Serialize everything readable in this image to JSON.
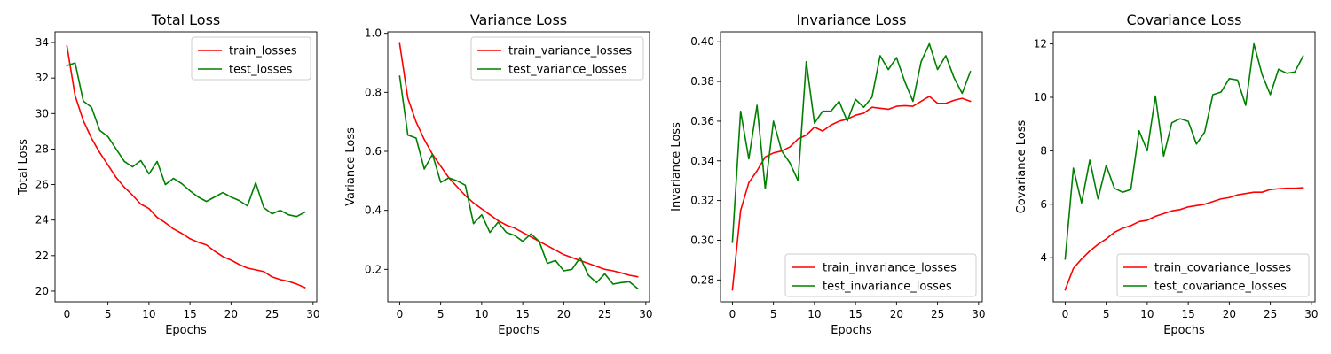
{
  "colors": {
    "train": "#ff0000",
    "test": "#008000",
    "axis": "#000000",
    "legend_border": "#cccccc"
  },
  "chart_data": [
    {
      "type": "line",
      "title": "Total Loss",
      "xlabel": "Epochs",
      "ylabel": "Total Loss",
      "xlim": [
        -1.45,
        30.45
      ],
      "ylim": [
        19.4,
        34.6
      ],
      "xticks": [
        0,
        5,
        10,
        15,
        20,
        25,
        30
      ],
      "yticks": [
        20,
        22,
        24,
        26,
        28,
        30,
        32,
        34
      ],
      "tick_decimals": 0,
      "legend_position": "top-right",
      "grid": false,
      "x": [
        0,
        1,
        2,
        3,
        4,
        5,
        6,
        7,
        8,
        9,
        10,
        11,
        12,
        13,
        14,
        15,
        16,
        17,
        18,
        19,
        20,
        21,
        22,
        23,
        24,
        25,
        26,
        27,
        28,
        29
      ],
      "series": [
        {
          "name": "train_losses",
          "color": "#ff0000",
          "values": [
            33.8,
            31.0,
            29.6,
            28.6,
            27.8,
            27.1,
            26.4,
            25.85,
            25.4,
            24.9,
            24.65,
            24.15,
            23.85,
            23.5,
            23.25,
            22.95,
            22.75,
            22.6,
            22.25,
            21.95,
            21.75,
            21.5,
            21.3,
            21.2,
            21.1,
            20.8,
            20.65,
            20.55,
            20.4,
            20.2
          ]
        },
        {
          "name": "test_losses",
          "color": "#008000",
          "values": [
            32.7,
            32.85,
            30.7,
            30.35,
            29.05,
            28.7,
            28.0,
            27.3,
            27.0,
            27.35,
            26.6,
            27.3,
            26.0,
            26.35,
            26.05,
            25.65,
            25.3,
            25.05,
            25.3,
            25.55,
            25.3,
            25.1,
            24.8,
            26.1,
            24.7,
            24.35,
            24.55,
            24.3,
            24.2,
            24.45
          ]
        }
      ]
    },
    {
      "type": "line",
      "title": "Variance Loss",
      "xlabel": "Epochs",
      "ylabel": "Variance Loss",
      "xlim": [
        -1.45,
        30.45
      ],
      "ylim": [
        0.09,
        1.005
      ],
      "xticks": [
        0,
        5,
        10,
        15,
        20,
        25,
        30
      ],
      "yticks": [
        0.2,
        0.4,
        0.6,
        0.8,
        1.0
      ],
      "tick_decimals": 1,
      "legend_position": "top-right",
      "grid": false,
      "x": [
        0,
        1,
        2,
        3,
        4,
        5,
        6,
        7,
        8,
        9,
        10,
        11,
        12,
        13,
        14,
        15,
        16,
        17,
        18,
        19,
        20,
        21,
        22,
        23,
        24,
        25,
        26,
        27,
        28,
        29
      ],
      "series": [
        {
          "name": "train_variance_losses",
          "color": "#ff0000",
          "values": [
            0.965,
            0.78,
            0.7,
            0.64,
            0.59,
            0.55,
            0.51,
            0.48,
            0.45,
            0.425,
            0.405,
            0.385,
            0.365,
            0.35,
            0.34,
            0.325,
            0.31,
            0.295,
            0.28,
            0.265,
            0.25,
            0.24,
            0.23,
            0.22,
            0.21,
            0.2,
            0.195,
            0.188,
            0.18,
            0.175
          ]
        },
        {
          "name": "test_variance_losses",
          "color": "#008000",
          "values": [
            0.855,
            0.655,
            0.645,
            0.54,
            0.59,
            0.495,
            0.51,
            0.5,
            0.485,
            0.355,
            0.385,
            0.325,
            0.36,
            0.325,
            0.315,
            0.295,
            0.32,
            0.295,
            0.22,
            0.23,
            0.195,
            0.2,
            0.24,
            0.18,
            0.155,
            0.185,
            0.15,
            0.155,
            0.158,
            0.135
          ]
        }
      ]
    },
    {
      "type": "line",
      "title": "Invariance Loss",
      "xlabel": "Epochs",
      "ylabel": "Invariance Loss",
      "xlim": [
        -1.45,
        30.45
      ],
      "ylim": [
        0.269,
        0.405
      ],
      "xticks": [
        0,
        5,
        10,
        15,
        20,
        25,
        30
      ],
      "yticks": [
        0.28,
        0.3,
        0.32,
        0.34,
        0.36,
        0.38,
        0.4
      ],
      "tick_decimals": 2,
      "legend_position": "bottom-right",
      "grid": false,
      "x": [
        0,
        1,
        2,
        3,
        4,
        5,
        6,
        7,
        8,
        9,
        10,
        11,
        12,
        13,
        14,
        15,
        16,
        17,
        18,
        19,
        20,
        21,
        22,
        23,
        24,
        25,
        26,
        27,
        28,
        29
      ],
      "series": [
        {
          "name": "train_invariance_losses",
          "color": "#ff0000",
          "values": [
            0.275,
            0.315,
            0.329,
            0.335,
            0.342,
            0.344,
            0.345,
            0.347,
            0.351,
            0.353,
            0.357,
            0.355,
            0.358,
            0.36,
            0.361,
            0.363,
            0.364,
            0.367,
            0.3665,
            0.366,
            0.3675,
            0.3678,
            0.3675,
            0.37,
            0.3725,
            0.369,
            0.369,
            0.3705,
            0.3715,
            0.37
          ]
        },
        {
          "name": "test_invariance_losses",
          "color": "#008000",
          "values": [
            0.299,
            0.365,
            0.341,
            0.368,
            0.326,
            0.36,
            0.345,
            0.339,
            0.33,
            0.39,
            0.359,
            0.365,
            0.365,
            0.37,
            0.36,
            0.371,
            0.367,
            0.372,
            0.393,
            0.386,
            0.392,
            0.38,
            0.37,
            0.39,
            0.399,
            0.386,
            0.393,
            0.382,
            0.374,
            0.385
          ]
        }
      ]
    },
    {
      "type": "line",
      "title": "Covariance Loss",
      "xlabel": "Epochs",
      "ylabel": "Covariance Loss",
      "xlim": [
        -1.45,
        30.45
      ],
      "ylim": [
        2.35,
        12.45
      ],
      "xticks": [
        0,
        5,
        10,
        15,
        20,
        25,
        30
      ],
      "yticks": [
        4,
        6,
        8,
        10,
        12
      ],
      "tick_decimals": 0,
      "legend_position": "bottom-right",
      "grid": false,
      "x": [
        0,
        1,
        2,
        3,
        4,
        5,
        6,
        7,
        8,
        9,
        10,
        11,
        12,
        13,
        14,
        15,
        16,
        17,
        18,
        19,
        20,
        21,
        22,
        23,
        24,
        25,
        26,
        27,
        28,
        29
      ],
      "series": [
        {
          "name": "train_covariance_losses",
          "color": "#ff0000",
          "values": [
            2.8,
            3.6,
            3.95,
            4.25,
            4.5,
            4.7,
            4.95,
            5.1,
            5.2,
            5.35,
            5.4,
            5.55,
            5.65,
            5.75,
            5.8,
            5.9,
            5.95,
            6.0,
            6.1,
            6.2,
            6.25,
            6.35,
            6.4,
            6.45,
            6.45,
            6.55,
            6.58,
            6.6,
            6.6,
            6.62
          ]
        },
        {
          "name": "test_covariance_losses",
          "color": "#008000",
          "values": [
            3.95,
            7.35,
            6.05,
            7.65,
            6.2,
            7.45,
            6.6,
            6.45,
            6.55,
            8.75,
            8.0,
            10.05,
            7.8,
            9.05,
            9.2,
            9.1,
            8.25,
            8.7,
            10.1,
            10.2,
            10.7,
            10.65,
            9.7,
            12.0,
            10.85,
            10.1,
            11.05,
            10.9,
            10.95,
            11.55
          ]
        }
      ]
    }
  ]
}
